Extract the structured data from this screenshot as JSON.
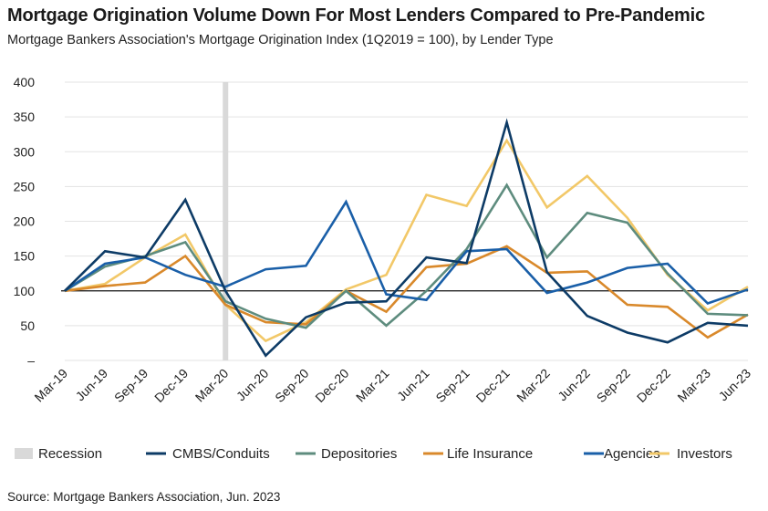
{
  "header": {
    "title": "Mortgage Origination Volume Down For Most Lenders Compared to Pre-Pandemic",
    "subtitle": "Mortgage Bankers Association's Mortgage Origination Index (1Q2019 = 100), by Lender Type"
  },
  "footer": {
    "source": "Source: Mortgage Bankers Association, Jun. 2023"
  },
  "chart_data": {
    "type": "line",
    "title": "Mortgage Origination Volume Down For Most Lenders Compared to Pre-Pandemic",
    "subtitle": "Mortgage Bankers Association's Mortgage Origination Index (1Q2019 = 100), by Lender Type",
    "categories": [
      "Mar-19",
      "Jun-19",
      "Sep-19",
      "Dec-19",
      "Mar-20",
      "Jun-20",
      "Sep-20",
      "Dec-20",
      "Mar-21",
      "Jun-21",
      "Sep-21",
      "Dec-21",
      "Mar-22",
      "Jun-22",
      "Sep-22",
      "Dec-22",
      "Mar-23",
      "Jun-23"
    ],
    "ylim": [
      0,
      400
    ],
    "yticks": [
      0,
      50,
      100,
      150,
      200,
      250,
      300,
      350,
      400
    ],
    "ytick_labels": [
      "–",
      "50",
      "100",
      "150",
      "200",
      "250",
      "300",
      "350",
      "400"
    ],
    "reference_line": 100,
    "grid": true,
    "legend_position": "bottom",
    "recession": {
      "label": "Recession",
      "category": "Mar-20",
      "color": "#d9d9d9"
    },
    "series": [
      {
        "name": "CMBS/Conduits",
        "color": "#0d3b66",
        "values": [
          100,
          157,
          148,
          231,
          100,
          7,
          62,
          83,
          85,
          148,
          140,
          342,
          127,
          64,
          40,
          26,
          54,
          50
        ]
      },
      {
        "name": "Depositories",
        "color": "#5e8c7e",
        "values": [
          100,
          135,
          150,
          170,
          85,
          60,
          47,
          100,
          50,
          100,
          160,
          252,
          148,
          212,
          198,
          125,
          67,
          65
        ]
      },
      {
        "name": "Life Insurance",
        "color": "#d9892b",
        "values": [
          100,
          107,
          112,
          150,
          80,
          55,
          52,
          100,
          70,
          134,
          139,
          164,
          126,
          128,
          80,
          77,
          33,
          66
        ]
      },
      {
        "name": "Agencies",
        "color": "#1a5fa8",
        "values": [
          100,
          139,
          148,
          123,
          106,
          131,
          136,
          228,
          95,
          87,
          157,
          160,
          97,
          112,
          133,
          139,
          82,
          102
        ]
      },
      {
        "name": "Investors",
        "color": "#f2c868",
        "values": [
          100,
          110,
          148,
          181,
          80,
          28,
          55,
          102,
          123,
          238,
          222,
          316,
          220,
          265,
          205,
          123,
          72,
          106
        ]
      }
    ]
  }
}
